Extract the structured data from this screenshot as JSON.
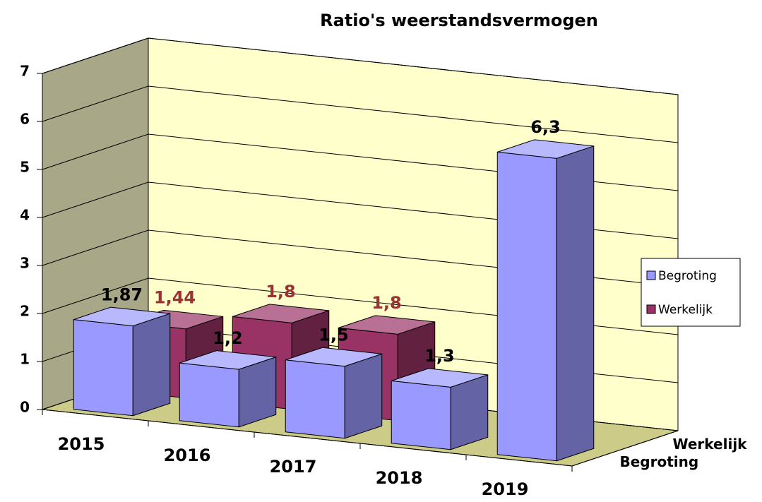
{
  "chart_data": {
    "type": "bar3d",
    "title": "Ratio's weerstandsvermogen",
    "categories": [
      "2015",
      "2016",
      "2017",
      "2018",
      "2019"
    ],
    "series": [
      {
        "name": "Begroting",
        "color": "#9999ff",
        "values": [
          1.87,
          1.2,
          1.5,
          1.3,
          6.3
        ],
        "value_labels": [
          "1,87",
          "1,2",
          "1,5",
          "1,3",
          "6,3"
        ]
      },
      {
        "name": "Werkelijk",
        "color": "#993366",
        "values": [
          1.44,
          1.8,
          1.8,
          null,
          null
        ],
        "value_labels": [
          "1,44",
          "1,8",
          "1,8",
          null,
          null
        ]
      }
    ],
    "ylim": [
      0,
      7
    ],
    "yticks": [
      0,
      1,
      2,
      3,
      4,
      5,
      6,
      7
    ],
    "grid": true,
    "legend": "right"
  }
}
